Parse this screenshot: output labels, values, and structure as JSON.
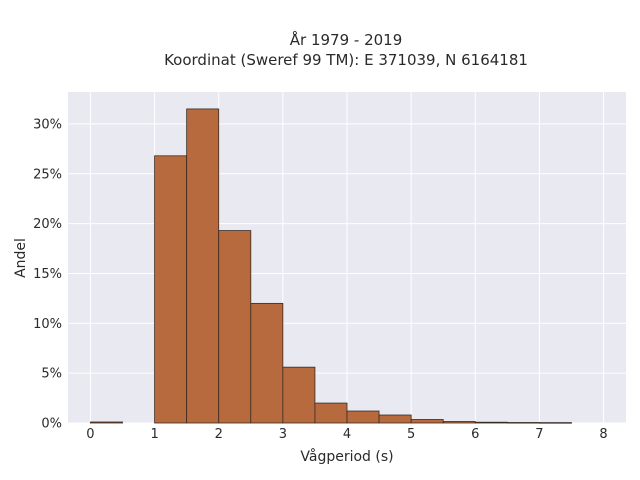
{
  "chart_data": {
    "type": "bar",
    "title_lines": [
      "År 1979 - 2019",
      "Koordinat (Sweref 99 TM): E 371039, N 6164181"
    ],
    "xlabel": "Vågperiod (s)",
    "ylabel": "Andel",
    "xlim": [
      -0.35,
      8.35
    ],
    "ylim": [
      0,
      33.2
    ],
    "x_ticks": [
      0,
      1,
      2,
      3,
      4,
      5,
      6,
      7,
      8
    ],
    "x_tick_labels": [
      "0",
      "1",
      "2",
      "3",
      "4",
      "5",
      "6",
      "7",
      "8"
    ],
    "y_ticks": [
      0,
      5,
      10,
      15,
      20,
      25,
      30
    ],
    "y_tick_labels": [
      "0%",
      "5%",
      "10%",
      "15%",
      "20%",
      "25%",
      "30%"
    ],
    "bin_width": 0.5,
    "bins_start": [
      0,
      0.5,
      1.0,
      1.5,
      2.0,
      2.5,
      3.0,
      3.5,
      4.0,
      4.5,
      5.0,
      5.5,
      6.0,
      6.5,
      7.0,
      7.5
    ],
    "values": [
      0.1,
      0,
      26.8,
      31.5,
      19.3,
      12.0,
      5.6,
      2.0,
      1.2,
      0.8,
      0.35,
      0.15,
      0.08,
      0.05,
      0.04,
      0
    ],
    "bar_color": "#b86a3f",
    "background_color": "#e9e9f1",
    "grid": true
  }
}
